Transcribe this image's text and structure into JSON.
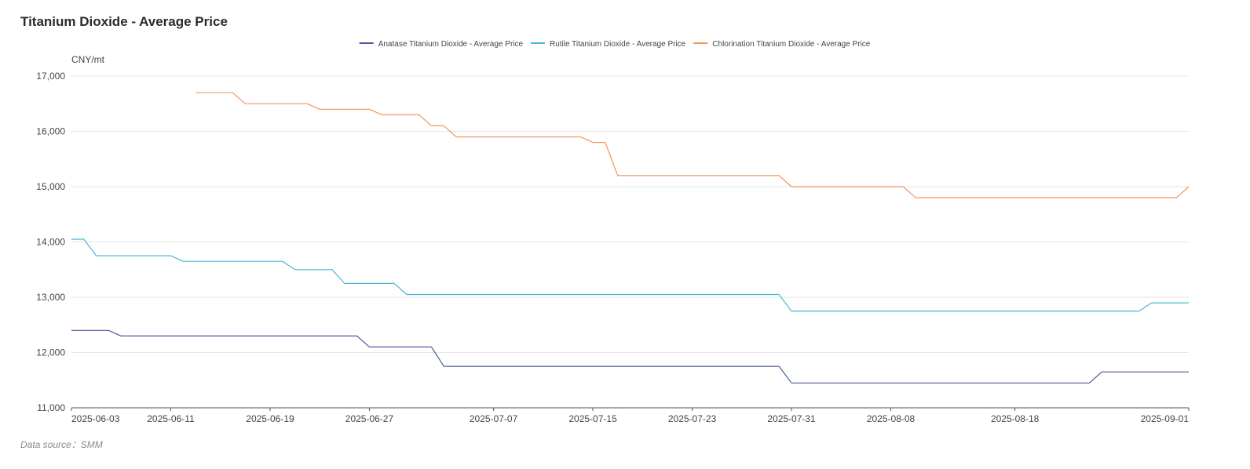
{
  "chart_data": {
    "type": "line",
    "title": "Titanium Dioxide - Average Price",
    "ylabel": "CNY/mt",
    "xlabel": "",
    "ylim": [
      11000,
      17000
    ],
    "yticks": [
      11000,
      12000,
      13000,
      14000,
      15000,
      16000,
      17000
    ],
    "ytick_labels": [
      "11,000",
      "12,000",
      "13,000",
      "14,000",
      "15,000",
      "16,000",
      "17,000"
    ],
    "xlim": [
      "2025-06-03",
      "2025-09-01"
    ],
    "xtick_labels": [
      "2025-06-03",
      "2025-06-11",
      "2025-06-19",
      "2025-06-27",
      "2025-07-07",
      "2025-07-15",
      "2025-07-23",
      "2025-07-31",
      "2025-08-08",
      "2025-08-18",
      "2025-09-01"
    ],
    "grid": "horizontal",
    "legend_position": "top",
    "source": "Data source：SMM",
    "series": [
      {
        "name": "Anatase Titanium Dioxide - Average Price",
        "color": "#4a5a9a",
        "points": [
          [
            "2025-06-03",
            12400
          ],
          [
            "2025-06-06",
            12400
          ],
          [
            "2025-06-07",
            12300
          ],
          [
            "2025-06-26",
            12300
          ],
          [
            "2025-06-27",
            12100
          ],
          [
            "2025-07-02",
            12100
          ],
          [
            "2025-07-03",
            11750
          ],
          [
            "2025-07-30",
            11750
          ],
          [
            "2025-07-31",
            11450
          ],
          [
            "2025-08-24",
            11450
          ],
          [
            "2025-08-25",
            11650
          ],
          [
            "2025-09-01",
            11650
          ]
        ]
      },
      {
        "name": "Rutile Titanium Dioxide - Average Price",
        "color": "#4ab8d4",
        "points": [
          [
            "2025-06-03",
            14050
          ],
          [
            "2025-06-04",
            14050
          ],
          [
            "2025-06-05",
            13750
          ],
          [
            "2025-06-11",
            13750
          ],
          [
            "2025-06-12",
            13650
          ],
          [
            "2025-06-20",
            13650
          ],
          [
            "2025-06-21",
            13500
          ],
          [
            "2025-06-24",
            13500
          ],
          [
            "2025-06-25",
            13250
          ],
          [
            "2025-06-29",
            13250
          ],
          [
            "2025-06-30",
            13050
          ],
          [
            "2025-07-30",
            13050
          ],
          [
            "2025-07-31",
            12750
          ],
          [
            "2025-08-28",
            12750
          ],
          [
            "2025-08-29",
            12900
          ],
          [
            "2025-09-01",
            12900
          ]
        ]
      },
      {
        "name": "Chlorination Titanium Dioxide - Average Price",
        "color": "#f0955a",
        "points": [
          [
            "2025-06-13",
            16700
          ],
          [
            "2025-06-16",
            16700
          ],
          [
            "2025-06-17",
            16500
          ],
          [
            "2025-06-22",
            16500
          ],
          [
            "2025-06-23",
            16400
          ],
          [
            "2025-06-27",
            16400
          ],
          [
            "2025-06-28",
            16300
          ],
          [
            "2025-07-01",
            16300
          ],
          [
            "2025-07-02",
            16100
          ],
          [
            "2025-07-03",
            16100
          ],
          [
            "2025-07-04",
            15900
          ],
          [
            "2025-07-14",
            15900
          ],
          [
            "2025-07-15",
            15800
          ],
          [
            "2025-07-16",
            15800
          ],
          [
            "2025-07-17",
            15200
          ],
          [
            "2025-07-30",
            15200
          ],
          [
            "2025-07-31",
            15000
          ],
          [
            "2025-08-09",
            15000
          ],
          [
            "2025-08-10",
            14800
          ],
          [
            "2025-08-31",
            14800
          ],
          [
            "2025-09-01",
            15000
          ]
        ]
      }
    ]
  }
}
